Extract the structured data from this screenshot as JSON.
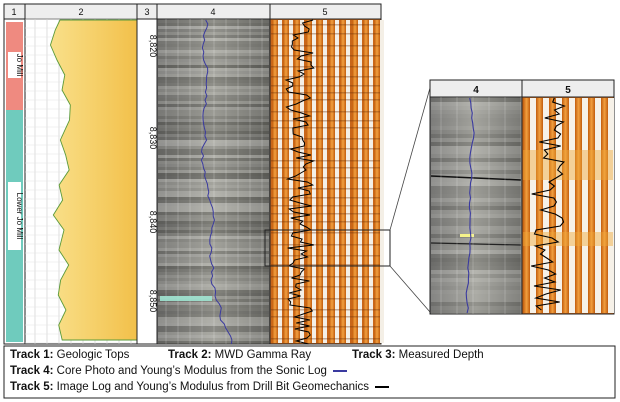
{
  "tracks": {
    "t1": {
      "header": "1",
      "tops": [
        {
          "label": "Jo Mill"
        },
        {
          "label": "Lower Jo Mill"
        }
      ]
    },
    "t2": {
      "header": "2"
    },
    "t3": {
      "header": "3",
      "depths": [
        "8,820",
        "8,830",
        "8,840",
        "8,850"
      ]
    },
    "t4": {
      "header": "4"
    },
    "t5": {
      "header": "5"
    }
  },
  "zoom": {
    "t4_header": "4",
    "t5_header": "5"
  },
  "legend": {
    "row1": [
      {
        "bold": "Track 1:",
        "text": " Geologic Tops"
      },
      {
        "bold": "Track 2:",
        "text": " MWD Gamma Ray"
      },
      {
        "bold": "Track 3:",
        "text": " Measured Depth"
      }
    ],
    "row2": {
      "bold": "Track 4:",
      "text": " Core Photo and Young’s Modulus from the Sonic Log",
      "line_color": "#3a3aa0"
    },
    "row3": {
      "bold": "Track 5:",
      "text": " Image Log and Young’s Modulus from Drill Bit Geomechanics",
      "line_color": "#000000"
    }
  },
  "colors": {
    "jo_mill": "#ef8a80",
    "lower_jo_mill": "#6fcbbd",
    "gamma_fill": "#f6cf62",
    "sonic": "#3a3aa0"
  }
}
